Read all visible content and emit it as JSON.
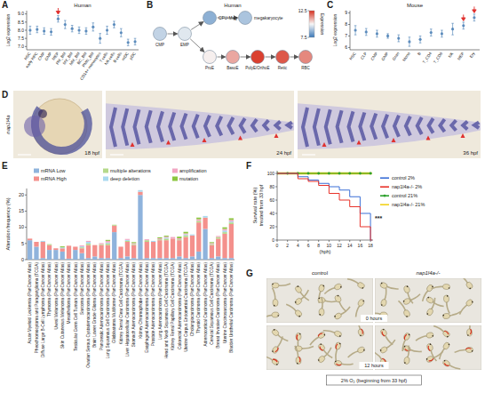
{
  "chart_data": [
    {
      "panel": "A",
      "type": "dot",
      "title": "Human",
      "ylabel": "Log2 expression",
      "categories": [
        "HSC",
        "early HPC",
        "CMP",
        "GMP",
        "MEP",
        "PM_BM",
        "MY_BM",
        "MM_BM",
        "BC_BM",
        "PMN_BM",
        "CD14+ monocytes",
        "T cells",
        "NK cells",
        "B cells",
        "mDC",
        "pDC"
      ],
      "values": [
        8.0,
        8.05,
        7.95,
        7.9,
        8.7,
        8.35,
        8.1,
        8.0,
        7.95,
        8.2,
        7.5,
        8.0,
        8.35,
        7.85,
        7.25,
        7.3
      ],
      "errors": [
        0.25,
        0.2,
        0.2,
        0.2,
        0.2,
        0.25,
        0.2,
        0.2,
        0.2,
        0.25,
        0.3,
        0.25,
        0.2,
        0.25,
        0.2,
        0.2
      ],
      "color": "#4a7fb5",
      "ylim": [
        6.8,
        9.2
      ],
      "yticks": [
        {
          "value": 7,
          "label": "7.0"
        },
        {
          "value": 7.5,
          "label": "7.5"
        },
        {
          "value": 8,
          "label": "8.0"
        },
        {
          "value": 8.5,
          "label": "8.5"
        },
        {
          "value": 9,
          "label": "9.0"
        }
      ],
      "annotations": [
        {
          "category": "MEP",
          "marker": "arrow",
          "color": "#e0312f"
        }
      ]
    },
    {
      "panel": "C",
      "type": "dot",
      "title": "Mouse",
      "ylabel": "Log2 expression",
      "categories": [
        "HSC",
        "CLP",
        "CMP",
        "GMP",
        "Gran",
        "Mono",
        "B",
        "T_CD4",
        "T_CD8",
        "NK",
        "MEP",
        "Ery"
      ],
      "values": [
        7.5,
        7.35,
        7.2,
        7.0,
        6.8,
        6.5,
        6.7,
        7.3,
        7.2,
        7.6,
        7.9,
        8.6
      ],
      "errors": [
        0.4,
        0.3,
        0.3,
        0.2,
        0.3,
        0.4,
        0.3,
        0.3,
        0.3,
        0.5,
        0.3,
        0.3
      ],
      "color": "#4a7fb5",
      "ylim": [
        5.8,
        9.2
      ],
      "yticks": [
        6,
        7,
        8,
        9
      ],
      "annotations": [
        {
          "category": "MEP",
          "marker": "arrow",
          "color": "#e0312f"
        },
        {
          "category": "Ery",
          "marker": "arrow",
          "color": "#e0312f"
        }
      ]
    },
    {
      "panel": "E",
      "type": "bar",
      "stacked": true,
      "ylabel": "Alteration frequency (%)",
      "legend": "top",
      "categories": [
        "Acute Myeloid Leukemia (PanCancer Atlas)",
        "Pheochromocytoma and Paraganglioma (TCGA)",
        "Diffuse Large B-Cell Lymphoma (PanCancer Atlas)",
        "Thymoma (PanCancer Atlas)",
        "Uveal Melanoma (PanCancer Atlas)",
        "Skin Cutaneous Melanoma (PanCancer Atlas)",
        "Mesothelioma (PanCancer Atlas)",
        "Testicular Germ Cell Tumors (PanCancer Atlas)",
        "Sarcoma (PanCancer Atlas)",
        "Ovarian Serous Cystadenocarcinoma (PanCancer Atlas)",
        "Brain Lower Grade Glioma (PanCancer Atlas)",
        "Pancreatic Adenocarcinoma (PanCancer Atlas)",
        "Lung Squamous Cell Carcinoma (PanCancer Atlas)",
        "Glioblastoma Multiforme (PanCancer Atlas)",
        "Kidney Renal Clear Cell Carcinoma (TCGA)",
        "Liver Hepatocellular Carcinoma (PanCancer Atlas)",
        "Stomach Adenocarcinoma (PanCancer Atlas)",
        "Kidney Chromophobe (PanCancer Atlas)",
        "Esophageal Adenocarcinoma (PanCancer Atlas)",
        "Prostate Adenocarcinoma (PanCancer Atlas)",
        "Lung Adenocarcinoma (PanCancer Atlas)",
        "Head and Neck Squamous Cell Carcinoma (TCGA)",
        "Kidney Renal Papillary Cell Carcinoma (TCGA)",
        "Colorectal Adenocarcinoma (PanCancer Atlas)",
        "Uterine Corpus Endometrial Carcinoma (TCGA)",
        "Cholangiocarcinoma (PanCancer Atlas)",
        "Thyroid Carcinoma (PanCancer Atlas)",
        "Adrenocortical Carcinoma (PanCancer Atlas)",
        "Cervical Squamous Cell Carcinoma (TCGA)",
        "Breast Invasive Carcinoma (PanCancer Atlas)",
        "Uterine Carcinosarcoma (PanCancer Atlas)",
        "Bladder Urothelial Carcinoma (PanCancer Atlas)"
      ],
      "series": [
        {
          "name": "mRNA Low",
          "color": "#8fb3dc",
          "values": [
            6.0,
            4.0,
            0.5,
            3.0,
            3.0,
            2.5,
            0.3,
            3.0,
            2.0,
            0.5,
            1.0,
            0.5,
            0.5,
            8.5,
            0.5,
            1.0,
            0.5,
            20.0,
            0.5,
            0.5,
            0.5,
            0.5,
            0.5,
            1.0,
            0.5,
            1.0,
            2.5,
            9.5,
            0.5,
            1.0,
            0.5,
            0.5
          ]
        },
        {
          "name": "mRNA High",
          "color": "#f4908c",
          "values": [
            0.5,
            1.5,
            5.0,
            1.5,
            0.5,
            1.0,
            4.0,
            1.0,
            1.5,
            4.0,
            3.5,
            4.0,
            4.0,
            2.0,
            3.5,
            4.5,
            4.0,
            1.0,
            5.0,
            5.0,
            5.5,
            5.5,
            6.0,
            5.0,
            6.5,
            6.5,
            9.0,
            3.5,
            4.0,
            5.5,
            7.5,
            10.5
          ]
        },
        {
          "name": "multiple alterations",
          "color": "#b5d98b",
          "values": [
            0,
            0,
            0,
            0.3,
            0,
            0,
            0,
            0,
            0.3,
            0.5,
            0,
            0.3,
            0.5,
            0.3,
            0,
            0.3,
            0.3,
            0,
            0.5,
            0,
            0.3,
            0.5,
            0,
            0.3,
            0.5,
            0,
            0.5,
            0,
            0.3,
            0.5,
            0.5,
            0.5
          ]
        },
        {
          "name": "deep deletion",
          "color": "#a9d9ef",
          "values": [
            0,
            0,
            0.3,
            0,
            0,
            0.3,
            0,
            0,
            0.3,
            0.5,
            0,
            0,
            0.3,
            0,
            0,
            0.3,
            0,
            0.5,
            0,
            0.3,
            0,
            0.3,
            0,
            0,
            0.3,
            0.3,
            0,
            0.5,
            0,
            0,
            0.5,
            0.3
          ]
        },
        {
          "name": "amplification",
          "color": "#f2a7c3",
          "values": [
            0,
            0,
            0,
            0,
            0,
            0,
            0,
            0,
            0.3,
            0.3,
            0,
            0.3,
            0.5,
            0,
            0,
            0.3,
            0.3,
            0,
            0.3,
            0,
            0.3,
            0.3,
            0.5,
            0.3,
            0.3,
            0,
            0.5,
            0,
            0.3,
            0.3,
            0.5,
            0.5
          ]
        },
        {
          "name": "mutation",
          "color": "#8cc63f",
          "values": [
            0,
            0,
            0,
            0,
            0,
            0.3,
            0,
            0,
            0,
            0,
            0,
            0,
            0.3,
            0,
            0,
            0,
            0.3,
            0,
            0,
            0,
            0.3,
            0.3,
            0,
            0.5,
            0.5,
            0,
            0.5,
            0,
            0.3,
            0,
            0.5,
            0.5
          ]
        }
      ],
      "ylim": [
        0,
        22
      ],
      "yticks": [
        0,
        5,
        10,
        15,
        20
      ]
    },
    {
      "panel": "F",
      "type": "line",
      "line_style": "step",
      "ylabel": [
        "Survival rate (%)",
        "treated from 33 hpf"
      ],
      "xlabel": "(hph)",
      "legend": "right",
      "x": [
        0,
        2,
        4,
        6,
        8,
        10,
        12,
        14,
        16,
        18
      ],
      "series": [
        {
          "name": "control 2%",
          "color": "#3b6fd6",
          "line_style": "solid",
          "values": [
            100,
            100,
            95,
            90,
            85,
            80,
            75,
            65,
            40,
            0
          ]
        },
        {
          "name": "nap1l4a-/- 2%",
          "color": "#e8322a",
          "line_style": "solid",
          "values": [
            100,
            100,
            92,
            88,
            82,
            70,
            60,
            50,
            20,
            0
          ]
        },
        {
          "name": "control 21%",
          "color": "#2ca02c",
          "line_style": "solid",
          "marker": "circle",
          "values": [
            100,
            100,
            100,
            100,
            100,
            100,
            100,
            100,
            100,
            100
          ]
        },
        {
          "name": "nap1l4a-/- 21%",
          "color": "#f2d21b",
          "line_style": "solid",
          "values": [
            100,
            100,
            100,
            100,
            100,
            100,
            100,
            100,
            100,
            100
          ]
        }
      ],
      "xlim": [
        0,
        18.5
      ],
      "xticks": [
        0,
        2,
        4,
        6,
        8,
        10,
        12,
        14,
        16,
        18
      ],
      "ylim": [
        0,
        104
      ],
      "yticks": [
        0,
        20,
        40,
        60,
        80,
        100
      ],
      "annotations": [
        {
          "text": "***"
        }
      ]
    }
  ],
  "diagram": {
    "panel": "B",
    "title": "Human",
    "nodes": [
      {
        "label": "CMP",
        "value": 9.3
      },
      {
        "label": "EMP",
        "value": 9.7
      },
      {
        "label": "CFU-Meg",
        "value": 8.6
      },
      {
        "label": "megakaryocyte",
        "value": 9.0
      },
      {
        "label": "ProE",
        "value": 10.1
      },
      {
        "label": "BasoE",
        "value": 11.0
      },
      {
        "label": "PolyE/OrthoE",
        "value": 12.3
      },
      {
        "label": "Retic",
        "value": 12.0
      },
      {
        "label": "RBC",
        "value": 11.4
      }
    ],
    "edges": [
      [
        "CMP",
        "EMP"
      ],
      [
        "EMP",
        "CFU-Meg"
      ],
      [
        "CFU-Meg",
        "megakaryocyte"
      ],
      [
        "EMP",
        "ProE"
      ],
      [
        "ProE",
        "BasoE"
      ],
      [
        "BasoE",
        "PolyE/OrthoE"
      ],
      [
        "PolyE/OrthoE",
        "Retic"
      ],
      [
        "Retic",
        "RBC"
      ]
    ],
    "colorbar": {
      "label": "Expression",
      "range": [
        7.5,
        12.5
      ],
      "ticks": [
        7.5,
        12.5
      ]
    }
  },
  "images": {
    "D": {
      "panel": "D",
      "gene": "nap1l4a",
      "stages": [
        "18 hpf",
        "24 hpf",
        "36 hpf"
      ]
    },
    "G": {
      "panel": "G",
      "columns": [
        "control",
        "nap1l4a-/-"
      ],
      "rows": [
        "0 hours",
        "12 hours"
      ],
      "caption": "2% O₂ (beginning from 33 hpf)"
    }
  }
}
